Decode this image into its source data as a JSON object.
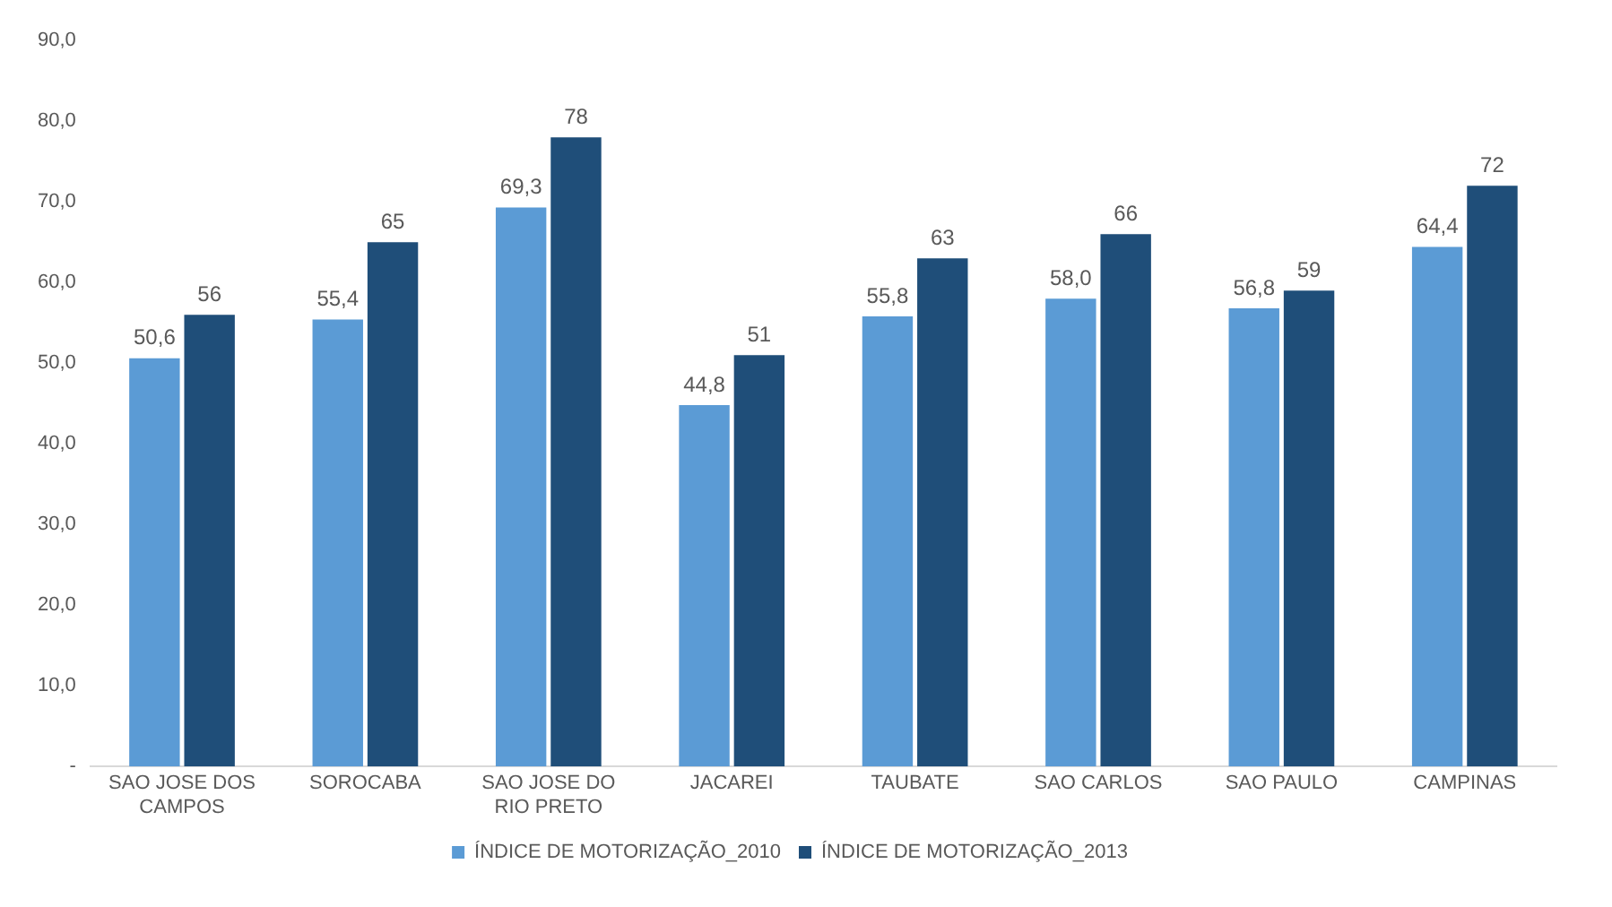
{
  "chart_data": {
    "type": "bar",
    "categories": [
      "SAO JOSE DOS CAMPOS",
      "SOROCABA",
      "SAO JOSE DO RIO PRETO",
      "JACAREI",
      "TAUBATE",
      "SAO CARLOS",
      "SAO PAULO",
      "CAMPINAS"
    ],
    "series": [
      {
        "name": "ÍNDICE DE MOTORIZAÇÃO_2010",
        "color": "#5b9bd5",
        "values": [
          50.6,
          55.4,
          69.3,
          44.8,
          55.8,
          58.0,
          56.8,
          64.4
        ],
        "value_labels": [
          "50,6",
          "55,4",
          "69,3",
          "44,8",
          "55,8",
          "58,0",
          "56,8",
          "64,4"
        ]
      },
      {
        "name": "ÍNDICE DE MOTORIZAÇÃO_2013",
        "color": "#1f4e79",
        "values": [
          56,
          65,
          78,
          51,
          63,
          66,
          59,
          72
        ],
        "value_labels": [
          "56",
          "65",
          "78",
          "51",
          "63",
          "66",
          "59",
          "72"
        ]
      }
    ],
    "ylim": [
      0,
      90
    ],
    "yticks": [
      {
        "value": 0,
        "label": "-"
      },
      {
        "value": 10,
        "label": "10,0"
      },
      {
        "value": 20,
        "label": "20,0"
      },
      {
        "value": 30,
        "label": "30,0"
      },
      {
        "value": 40,
        "label": "40,0"
      },
      {
        "value": 50,
        "label": "50,0"
      },
      {
        "value": 60,
        "label": "60,0"
      },
      {
        "value": 70,
        "label": "70,0"
      },
      {
        "value": 80,
        "label": "80,0"
      },
      {
        "value": 90,
        "label": "90,0"
      }
    ],
    "grid": false,
    "legend": "bottom"
  }
}
